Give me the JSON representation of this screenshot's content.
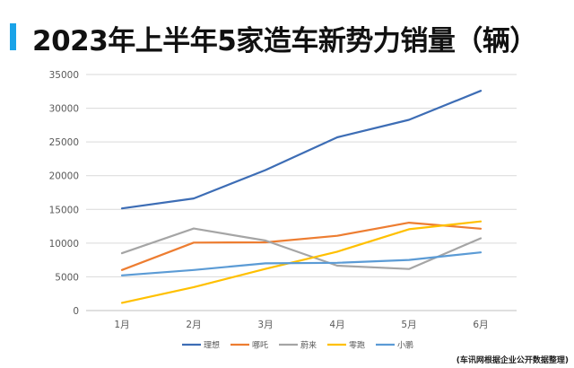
{
  "title": "2023年上半年5家造车新势力销量（辆）",
  "accent_color": "#1aa3e8",
  "source_note": "(车讯网根据企业公开数据整理)",
  "chart_data": {
    "type": "line",
    "title": "2023年上半年5家造车新势力销量（辆）",
    "categories": [
      "1月",
      "2月",
      "3月",
      "4月",
      "5月",
      "6月"
    ],
    "ylim": [
      0,
      35000
    ],
    "yticks": [
      0,
      5000,
      10000,
      15000,
      20000,
      25000,
      30000,
      35000
    ],
    "grid": true,
    "legend_position": "bottom",
    "series": [
      {
        "name": "理想",
        "color": "#3d6db5",
        "values": [
          15141,
          16620,
          20823,
          25681,
          28277,
          32575
        ]
      },
      {
        "name": "哪吒",
        "color": "#ed7d31",
        "values": [
          6016,
          10073,
          10109,
          11080,
          13029,
          12132
        ]
      },
      {
        "name": "蔚来",
        "color": "#a5a5a5",
        "values": [
          8506,
          12157,
          10378,
          6658,
          6155,
          10707
        ]
      },
      {
        "name": "零跑",
        "color": "#ffc000",
        "values": [
          1139,
          3475,
          6172,
          8726,
          12058,
          13209
        ]
      },
      {
        "name": "小鹏",
        "color": "#5b9bd5",
        "values": [
          5218,
          6010,
          7002,
          7079,
          7506,
          8620
        ]
      }
    ]
  }
}
